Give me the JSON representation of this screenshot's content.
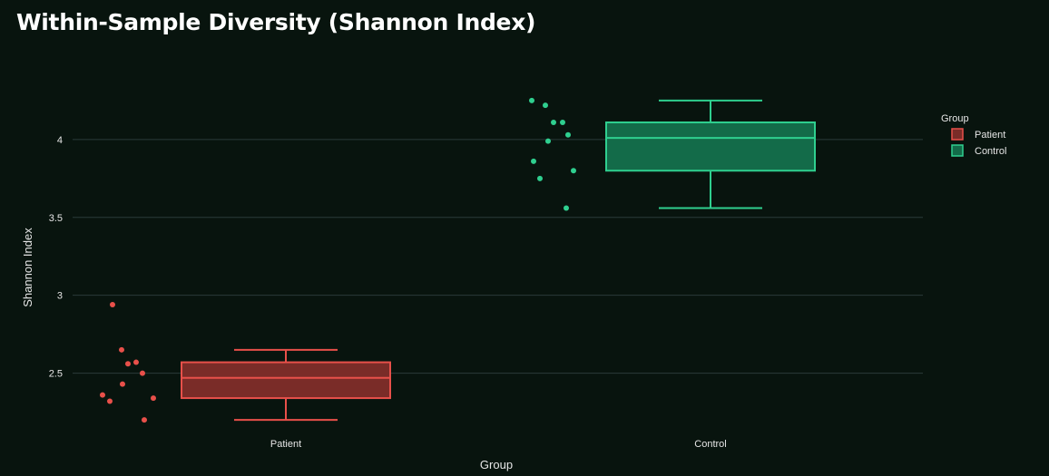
{
  "title": "Within-Sample Diversity (Shannon Index)",
  "chart_data": {
    "type": "box",
    "title": "Within-Sample Diversity (Shannon Index)",
    "xlabel": "Group",
    "ylabel": "Shannon Index",
    "categories": [
      "Patient",
      "Control"
    ],
    "ylim": [
      2.16,
      4.43
    ],
    "yticks": [
      2.5,
      3,
      3.5,
      4
    ],
    "yticklabels": [
      "2.5",
      "3",
      "3.5",
      "4"
    ],
    "grid": true,
    "legend": {
      "title": "Group",
      "position": "top-right",
      "entries": [
        "Patient",
        "Control"
      ]
    },
    "series": [
      {
        "name": "Patient",
        "color": "#e8504a",
        "fill": "#7a2c28",
        "box": {
          "min": 2.2,
          "q1": 2.34,
          "median": 2.47,
          "q3": 2.57,
          "max": 2.65
        },
        "points": [
          2.94,
          2.65,
          2.56,
          2.57,
          2.5,
          2.43,
          2.36,
          2.32,
          2.34,
          2.2
        ]
      },
      {
        "name": "Control",
        "color": "#2fcf8f",
        "fill": "#136b49",
        "box": {
          "min": 3.56,
          "q1": 3.8,
          "median": 4.01,
          "q3": 4.11,
          "max": 4.25
        },
        "points": [
          4.25,
          4.22,
          4.11,
          4.11,
          4.03,
          3.99,
          3.86,
          3.8,
          3.75,
          3.56
        ]
      }
    ]
  },
  "colors": {
    "background": "#08140e",
    "grid": "#2a3a3a",
    "text": "#e6e6e6"
  }
}
